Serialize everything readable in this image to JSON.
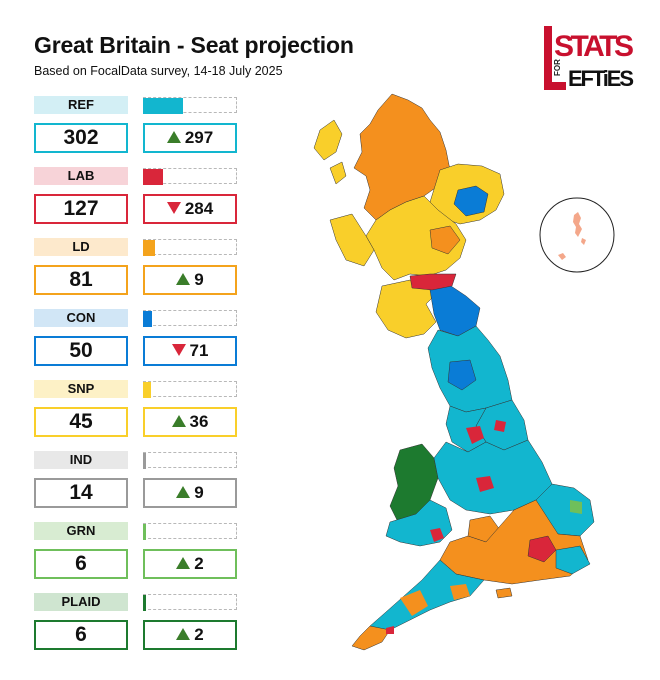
{
  "title": "Great Britain - Seat projection",
  "subtitle": "Based on FocalData survey, 14-18 July 2025",
  "logo": {
    "line1": "STATS",
    "small": "FOR",
    "line2": "EFTiES"
  },
  "parties": [
    {
      "label": "REF",
      "seats": "302",
      "change": "297",
      "direction": "up",
      "share": 0.43,
      "color": "#12b6cf",
      "label_bg": "#d3eff5"
    },
    {
      "label": "LAB",
      "seats": "127",
      "change": "284",
      "direction": "down",
      "share": 0.21,
      "color": "#d9263a",
      "label_bg": "#f7d3d8"
    },
    {
      "label": "LD",
      "seats": "81",
      "change": "9",
      "direction": "up",
      "share": 0.13,
      "color": "#f4a31c",
      "label_bg": "#fde9cc"
    },
    {
      "label": "CON",
      "seats": "50",
      "change": "71",
      "direction": "down",
      "share": 0.1,
      "color": "#0a7cd6",
      "label_bg": "#d1e6f6"
    },
    {
      "label": "SNP",
      "seats": "45",
      "change": "36",
      "direction": "up",
      "share": 0.08,
      "color": "#f9cf2a",
      "label_bg": "#fdf1c6"
    },
    {
      "label": "IND",
      "seats": "14",
      "change": "9",
      "direction": "up",
      "share": 0.02,
      "color": "#9a9a9a",
      "label_bg": "#e8e8e8"
    },
    {
      "label": "GRN",
      "seats": "6",
      "change": "2",
      "direction": "up",
      "share": 0.01,
      "color": "#6fbf5b",
      "label_bg": "#d8ecd2"
    },
    {
      "label": "PLAID",
      "seats": "6",
      "change": "2",
      "direction": "up",
      "share": 0.01,
      "color": "#1d7a2f",
      "label_bg": "#cfe5d0"
    }
  ],
  "colors": {
    "up": "#3a7d2a",
    "down": "#d9263a",
    "map_border": "#1a1a1a"
  }
}
